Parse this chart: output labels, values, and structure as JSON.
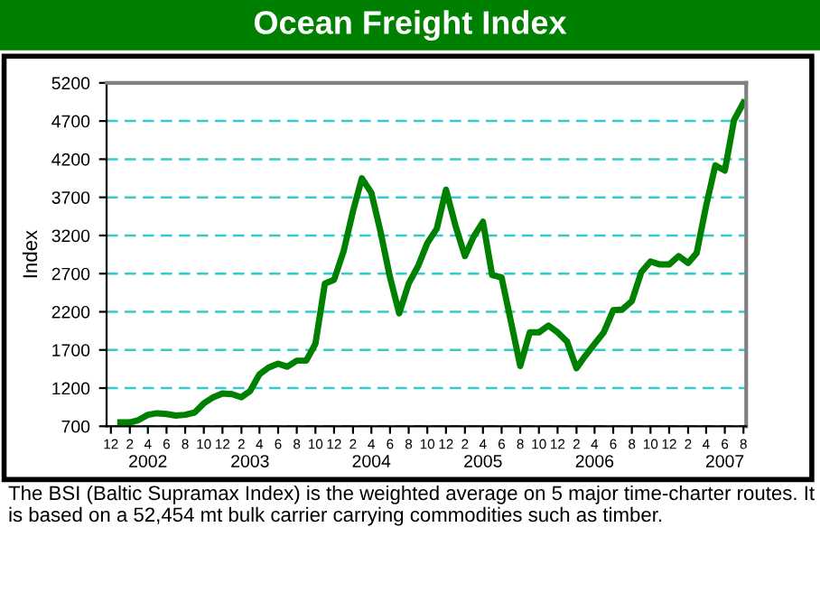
{
  "chart_data": {
    "type": "line",
    "title": "Ocean Freight Index",
    "ylabel": "Index",
    "x": [
      "2002-01",
      "2002-02",
      "2002-03",
      "2002-04",
      "2002-05",
      "2002-06",
      "2002-07",
      "2002-08",
      "2002-09",
      "2002-10",
      "2002-11",
      "2002-12",
      "2003-01",
      "2003-02",
      "2003-03",
      "2003-04",
      "2003-05",
      "2003-06",
      "2003-07",
      "2003-08",
      "2003-09",
      "2003-10",
      "2003-11",
      "2003-12",
      "2004-01",
      "2004-02",
      "2004-03",
      "2004-04",
      "2004-05",
      "2004-06",
      "2004-07",
      "2004-08",
      "2004-09",
      "2004-10",
      "2004-11",
      "2004-12",
      "2005-01",
      "2005-02",
      "2005-03",
      "2005-04",
      "2005-05",
      "2005-06",
      "2005-07",
      "2005-08",
      "2005-09",
      "2005-10",
      "2005-11",
      "2005-12",
      "2006-01",
      "2006-02",
      "2006-03",
      "2006-04",
      "2006-05",
      "2006-06",
      "2006-07",
      "2006-08",
      "2006-09",
      "2006-10",
      "2006-11",
      "2006-12",
      "2007-01",
      "2007-02",
      "2007-03",
      "2007-04",
      "2007-05",
      "2007-06",
      "2007-07",
      "2007-08"
    ],
    "series": [
      {
        "color": "#008000",
        "values": [
          750,
          750,
          780,
          850,
          870,
          860,
          840,
          850,
          880,
          1000,
          1080,
          1130,
          1120,
          1080,
          1160,
          1380,
          1470,
          1520,
          1480,
          1560,
          1560,
          1780,
          2570,
          2620,
          2990,
          3520,
          3950,
          3760,
          3250,
          2650,
          2180,
          2570,
          2800,
          3100,
          3290,
          3800,
          3330,
          2930,
          3180,
          3380,
          2680,
          2650,
          2080,
          1490,
          1930,
          1930,
          2020,
          1930,
          1810,
          1460,
          1620,
          1780,
          1930,
          2220,
          2230,
          2340,
          2720,
          2860,
          2820,
          2820,
          2930,
          2840,
          2970,
          3590,
          4120,
          4050,
          4710,
          4940
        ]
      }
    ],
    "xlim": [
      "2001-11-17",
      "2007-08-10"
    ],
    "xticks": [
      {
        "value": "2001-12",
        "label": "12"
      },
      {
        "value": "2002-02",
        "label": "2"
      },
      {
        "value": "2002-04",
        "label": "4"
      },
      {
        "value": "2002-06",
        "label": "6"
      },
      {
        "value": "2002-08",
        "label": "8"
      },
      {
        "value": "2002-10",
        "label": "10"
      },
      {
        "value": "2002-12",
        "label": "12"
      },
      {
        "value": "2003-02",
        "label": "2"
      },
      {
        "value": "2003-04",
        "label": "4"
      },
      {
        "value": "2003-06",
        "label": "6"
      },
      {
        "value": "2003-08",
        "label": "8"
      },
      {
        "value": "2003-10",
        "label": "10"
      },
      {
        "value": "2003-12",
        "label": "12"
      },
      {
        "value": "2004-02",
        "label": "2"
      },
      {
        "value": "2004-04",
        "label": "4"
      },
      {
        "value": "2004-06",
        "label": "6"
      },
      {
        "value": "2004-08",
        "label": "8"
      },
      {
        "value": "2004-10",
        "label": "10"
      },
      {
        "value": "2004-12",
        "label": "12"
      },
      {
        "value": "2005-02",
        "label": "2"
      },
      {
        "value": "2005-04",
        "label": "4"
      },
      {
        "value": "2005-06",
        "label": "6"
      },
      {
        "value": "2005-08",
        "label": "8"
      },
      {
        "value": "2005-10",
        "label": "10"
      },
      {
        "value": "2005-12",
        "label": "12"
      },
      {
        "value": "2006-02",
        "label": "2"
      },
      {
        "value": "2006-04",
        "label": "4"
      },
      {
        "value": "2006-06",
        "label": "6"
      },
      {
        "value": "2006-08",
        "label": "8"
      },
      {
        "value": "2006-10",
        "label": "10"
      },
      {
        "value": "2006-12",
        "label": "12"
      },
      {
        "value": "2007-02",
        "label": "2"
      },
      {
        "value": "2007-04",
        "label": "4"
      },
      {
        "value": "2007-06",
        "label": "6"
      },
      {
        "value": "2007-08",
        "label": "8"
      }
    ],
    "ylim": [
      700,
      5200
    ],
    "yticks": [
      700,
      1200,
      1700,
      2200,
      2700,
      3200,
      3700,
      4200,
      4700,
      5200
    ],
    "grid": "y",
    "line_style": "solid",
    "marker": "none",
    "x2lim": [
      "2001-11-17",
      "2007-08-10"
    ],
    "x2ticks": [
      {
        "value": "2002-04",
        "label": "2002"
      },
      {
        "value": "2003-03",
        "label": "2003"
      },
      {
        "value": "2004-04",
        "label": "2004"
      },
      {
        "value": "2005-04",
        "label": "2005"
      },
      {
        "value": "2006-04",
        "label": "2006"
      },
      {
        "value": "2007-06",
        "label": "2007"
      }
    ],
    "annotations": [
      "The BSI (Baltic Supramax Index) is the weighted average on 5 major time-charter routes. It is based on a 52,454 mt bulk carrier carrying commodities such as timber."
    ]
  }
}
